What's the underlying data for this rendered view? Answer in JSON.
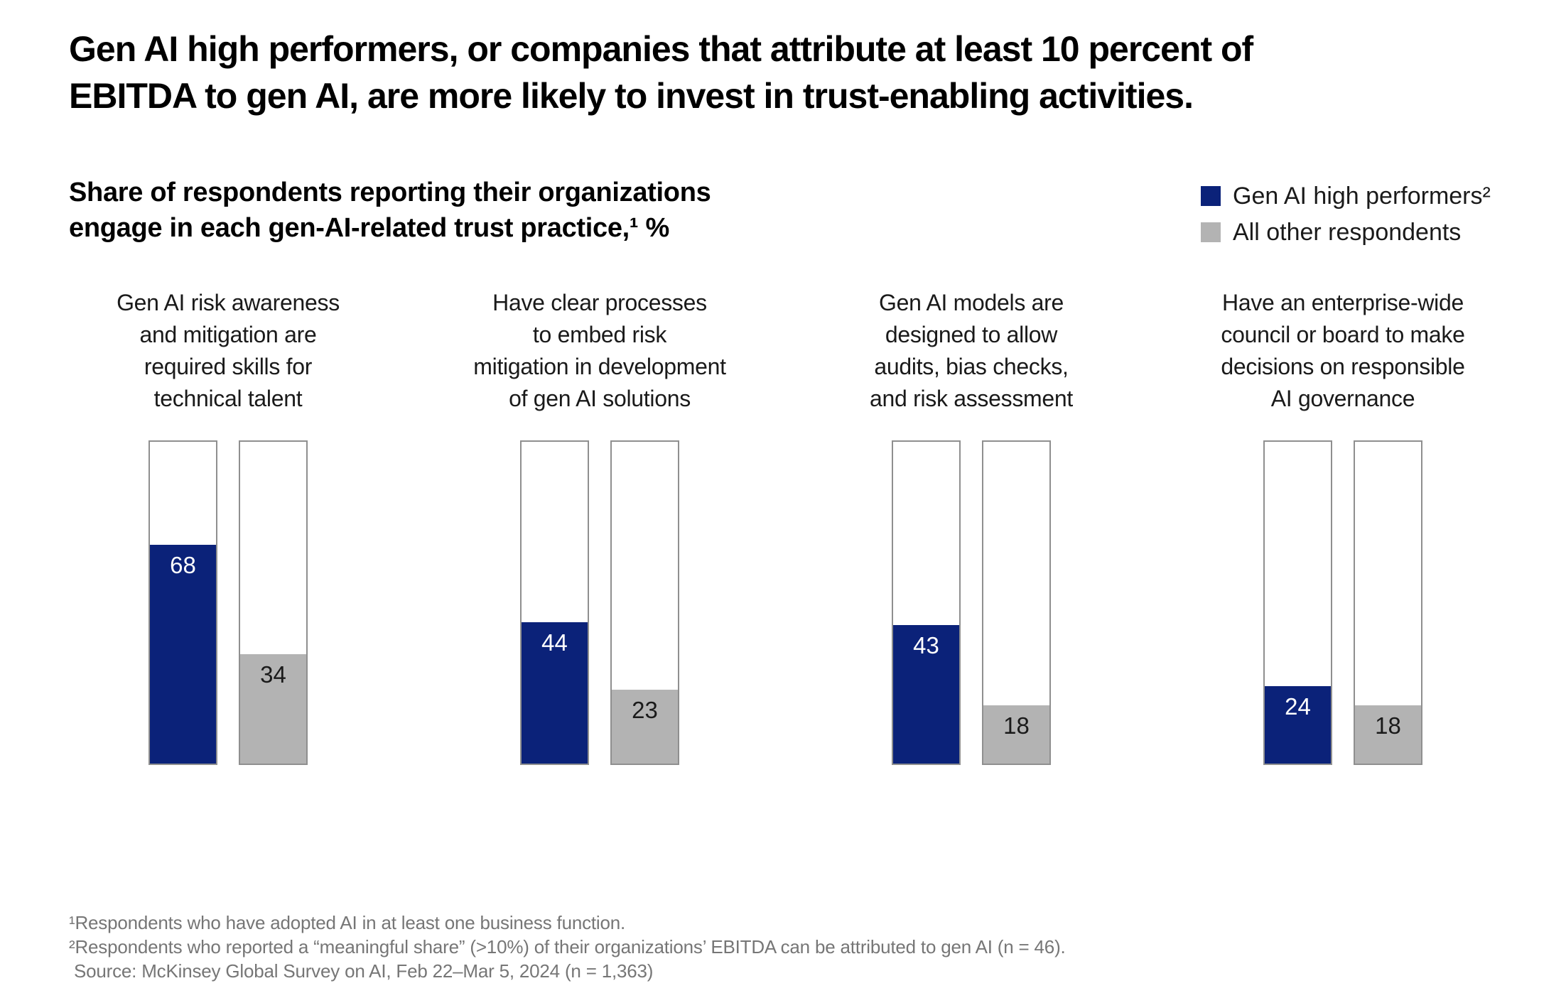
{
  "title": {
    "line1": "Gen AI high performers, or companies that attribute at least 10 percent of",
    "line2": "EBITDA to gen AI, are more likely to invest in trust-enabling activities."
  },
  "subtitle": {
    "line1": "Share of respondents reporting their organizations",
    "line2": "engage in each gen-AI-related trust practice,¹ %"
  },
  "legend": {
    "items": [
      {
        "label": "Gen AI high performers²",
        "color": "#0b2279"
      },
      {
        "label": "All other respondents",
        "color": "#b3b3b3"
      }
    ]
  },
  "chart_data": {
    "type": "bar",
    "title": "Share of respondents reporting their organizations engage in each gen-AI-related trust practice, %",
    "unit": "%",
    "ylim": [
      0,
      100
    ],
    "grid": false,
    "legend_position": "top-right",
    "bar_style": "filled portion of 100% outlined column",
    "categories": [
      "Gen AI risk awareness and mitigation are required skills for technical talent",
      "Have clear processes to embed risk mitigation in development of gen AI solutions",
      "Gen AI models are designed to allow audits, bias checks, and risk assessment",
      "Have an enterprise-wide council or board to make decisions on responsible AI governance"
    ],
    "group_labels": [
      "Gen AI risk awareness\nand mitigation are\nrequired skills for\ntechnical talent",
      "Have clear processes\nto embed risk\nmitigation in development\nof gen AI solutions",
      "Gen AI models are\ndesigned to allow\naudits, bias checks,\nand risk assessment",
      "Have an enterprise-wide\ncouncil or board to make\ndecisions on responsible\nAI governance"
    ],
    "series": [
      {
        "name": "Gen AI high performers",
        "color": "#0b2279",
        "values": [
          68,
          44,
          43,
          24
        ]
      },
      {
        "name": "All other respondents",
        "color": "#b3b3b3",
        "values": [
          34,
          23,
          18,
          18
        ]
      }
    ]
  },
  "footnotes": {
    "line1": "¹Respondents who have adopted AI in at least one business function.",
    "line2": "²Respondents who reported a “meaningful share” (>10%) of their organizations’ EBITDA can be attributed to gen AI (n = 46).",
    "source": "Source: McKinsey Global Survey on AI, Feb 22–Mar 5, 2024 (n = 1,363)"
  }
}
